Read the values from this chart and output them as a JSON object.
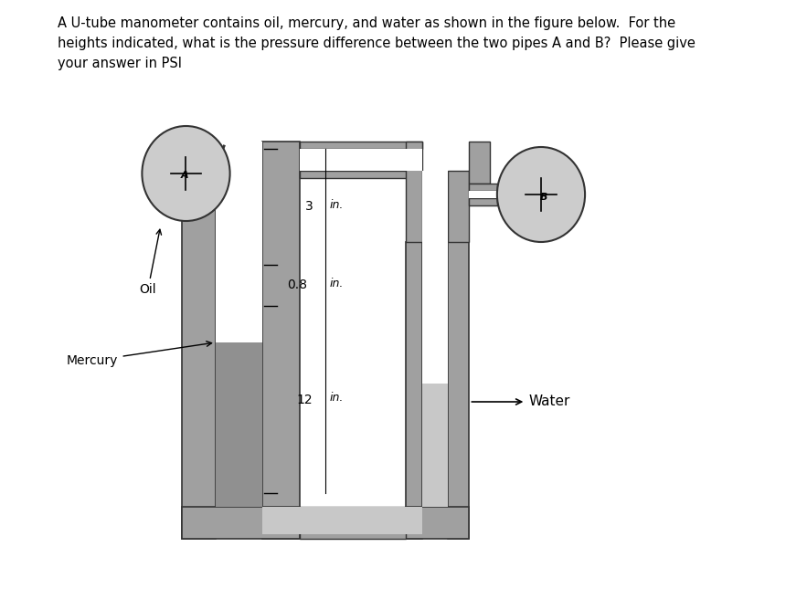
{
  "title_text": "A U-tube manometer contains oil, mercury, and water as shown in the figure below.  For the\nheights indicated, what is the pressure difference between the two pipes A and B?  Please give\nyour answer in PSI",
  "title_fontsize": 10.5,
  "bg_color": "#ffffff",
  "wall_color": "#aaaaaa",
  "mercury_fill": "#888888",
  "water_fill": "#cccccc",
  "circle_fill": "#cccccc",
  "line_color": "#222222",
  "lw_tube": 2.0,
  "label_oil": "Oil",
  "label_mercury": "Mercury",
  "label_water": "Water"
}
